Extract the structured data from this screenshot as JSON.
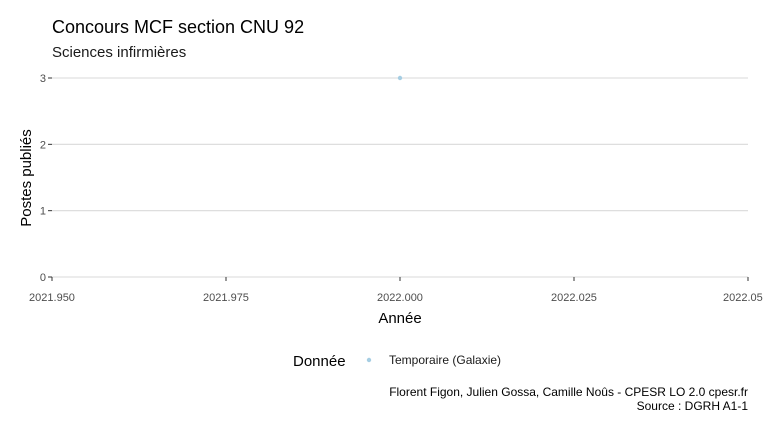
{
  "chart_data": {
    "type": "scatter",
    "title": "Concours MCF section CNU 92",
    "subtitle": "Sciences infirmières",
    "xlabel": "Année",
    "ylabel": "Postes publiés",
    "xlim": [
      2021.95,
      2022.05
    ],
    "ylim": [
      0,
      3
    ],
    "x_ticks": [
      "2021.950",
      "2021.975",
      "2022.000",
      "2022.025",
      "2022.05"
    ],
    "y_ticks": [
      "0",
      "1",
      "2",
      "3"
    ],
    "grid": "horizontal",
    "legend": {
      "title": "Donnée",
      "position": "bottom",
      "entries": [
        "Temporaire (Galaxie)"
      ]
    },
    "series": [
      {
        "name": "Temporaire (Galaxie)",
        "color": "#a6cee3",
        "points": [
          {
            "x": 2022.0,
            "y": 3
          }
        ]
      }
    ],
    "caption": [
      "Florent Figon, Julien Gossa, Camille Noûs - CPESR LO 2.0 cpesr.fr",
      "Source : DGRH A1-1"
    ]
  }
}
